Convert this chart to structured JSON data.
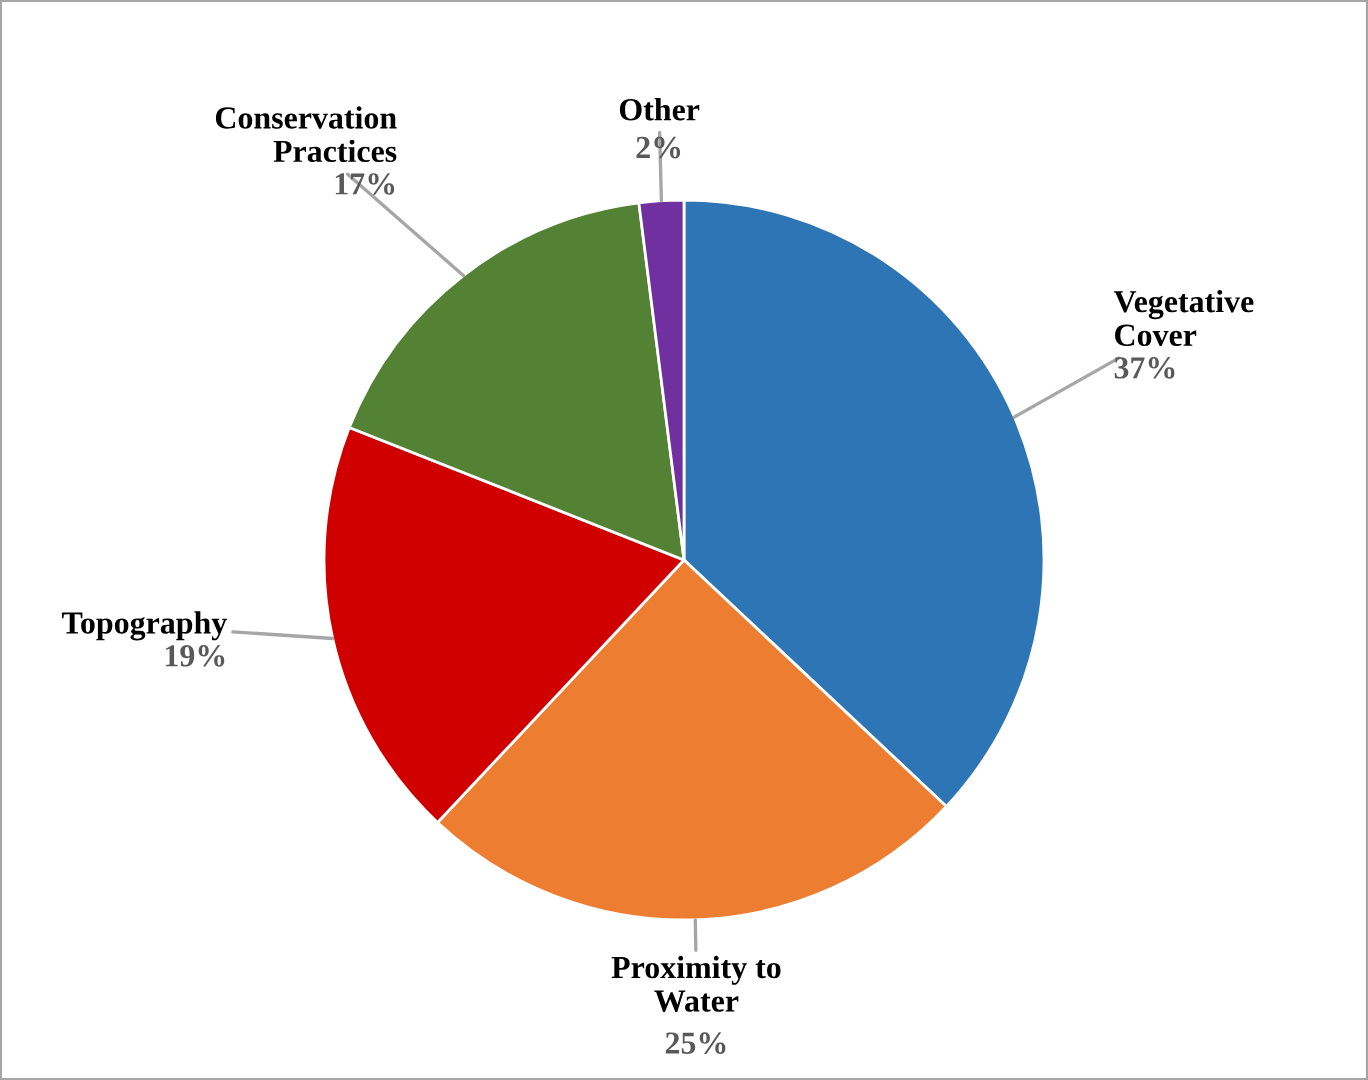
{
  "chart_data": {
    "type": "pie",
    "categories": [
      "Vegetative\nCover",
      "Proximity to\nWater",
      "Topography",
      "Conservation\nPractices",
      "Other"
    ],
    "values": [
      37,
      25,
      19,
      17,
      2
    ],
    "value_labels": [
      "37%",
      "25%",
      "19%",
      "17%",
      "2%"
    ],
    "colors": [
      "#2e75b6",
      "#ed7d31",
      "#d00000",
      "#548235",
      "#7030a0"
    ],
    "legend": false
  }
}
